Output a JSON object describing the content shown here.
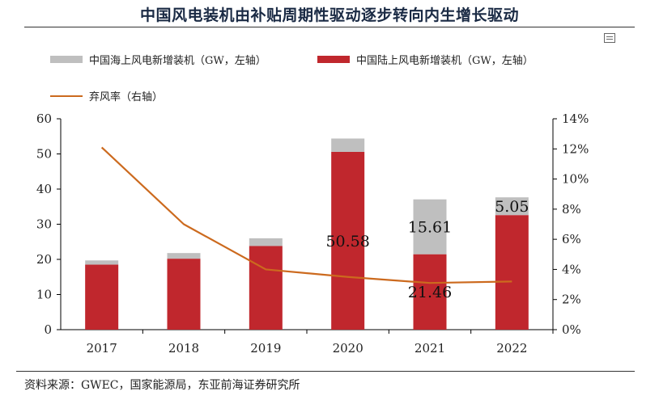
{
  "chart_data": {
    "type": "bar",
    "title": "中国风电装机由补贴周期性驱动逐步转向内生增长驱动",
    "categories": [
      "2017",
      "2018",
      "2019",
      "2020",
      "2021",
      "2022"
    ],
    "series": [
      {
        "name": "中国陆上风电新增装机（GW，左轴）",
        "kind": "bar",
        "stack": "a",
        "color": "#c0272d",
        "values": [
          18.5,
          20.2,
          23.8,
          50.58,
          21.46,
          32.6
        ]
      },
      {
        "name": "中国海上风电新增装机（GW，左轴）",
        "kind": "bar",
        "stack": "a",
        "color": "#bfbfbf",
        "values": [
          1.2,
          1.6,
          2.2,
          3.8,
          15.61,
          5.05
        ]
      },
      {
        "name": "弃风率（右轴）",
        "kind": "line",
        "axis": "right",
        "color": "#cc6a1e",
        "values": [
          12.1,
          7.0,
          4.0,
          3.5,
          3.1,
          3.2
        ]
      }
    ],
    "legend": {
      "offshore": "中国海上风电新增装机（GW，左轴）",
      "onshore": "中国陆上风电新增装机（GW，左轴）",
      "curtail": "弃风率（右轴）"
    },
    "legend_placement": "top",
    "ylim": [
      0,
      60
    ],
    "yticks": [
      "0",
      "10",
      "20",
      "30",
      "40",
      "50",
      "60"
    ],
    "y2lim": [
      0,
      14
    ],
    "y2ticks": [
      "0%",
      "2%",
      "4%",
      "6%",
      "8%",
      "10%",
      "12%",
      "14%"
    ],
    "annotations": [
      {
        "category": "2020",
        "series": "onshore",
        "text": "50.58"
      },
      {
        "category": "2021",
        "series": "onshore",
        "text": "21.46"
      },
      {
        "category": "2021",
        "series": "offshore",
        "text": "15.61"
      },
      {
        "category": "2022",
        "series": "offshore",
        "text": "5.05"
      }
    ],
    "grid": false
  },
  "source": "资料来源：GWEC，国家能源局，东亚前海证券研究所",
  "icon": "table-icon"
}
